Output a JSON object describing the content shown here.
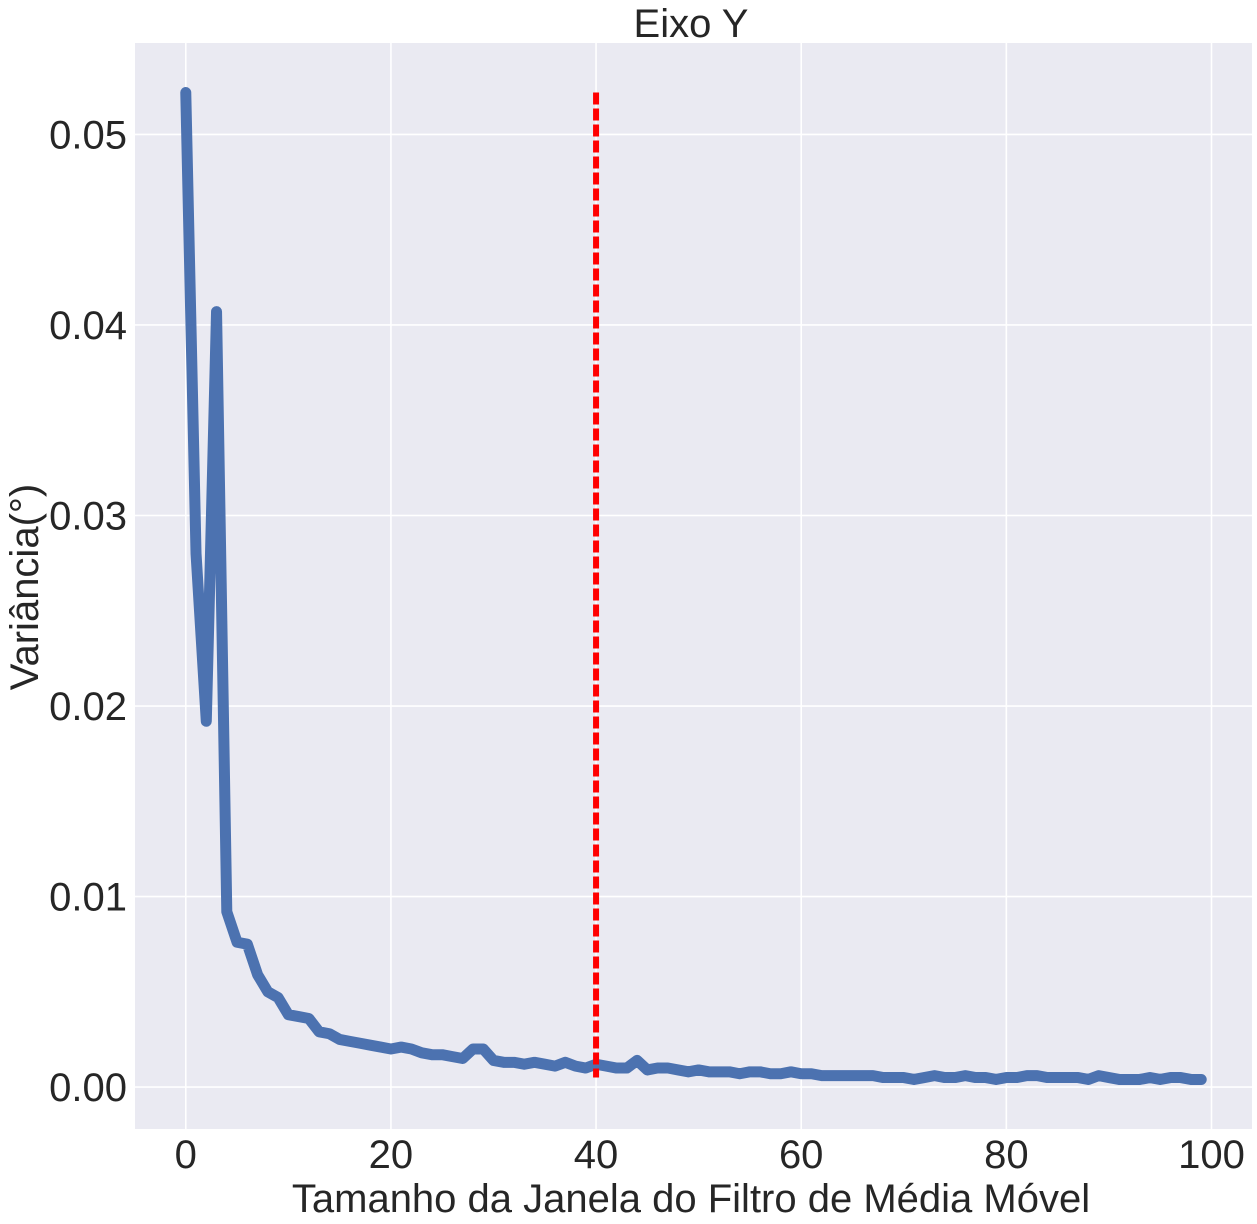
{
  "chart_data": {
    "type": "line",
    "title": "Eixo Y",
    "xlabel": "Tamanho da Janela do Filtro de Média Móvel",
    "ylabel": "Variância(°)",
    "xlim": [
      -4.95,
      103.95
    ],
    "ylim": [
      -0.0022,
      0.0548
    ],
    "xticks": [
      0,
      20,
      40,
      60,
      80,
      100
    ],
    "xtick_labels": [
      "0",
      "20",
      "40",
      "60",
      "80",
      "100"
    ],
    "yticks": [
      0.0,
      0.01,
      0.02,
      0.03,
      0.04,
      0.05
    ],
    "ytick_labels": [
      "0.00",
      "0.01",
      "0.02",
      "0.03",
      "0.04",
      "0.05"
    ],
    "grid": true,
    "style": {
      "background": "#eaeaf2",
      "grid_color": "#ffffff",
      "text_color": "#262626"
    },
    "series": [
      {
        "color": "#4c72b0",
        "x": [
          0,
          1,
          2,
          3,
          4,
          5,
          6,
          7,
          8,
          9,
          10,
          11,
          12,
          13,
          14,
          15,
          16,
          17,
          18,
          19,
          20,
          21,
          22,
          23,
          24,
          25,
          26,
          27,
          28,
          29,
          30,
          31,
          32,
          33,
          34,
          35,
          36,
          37,
          38,
          39,
          40,
          41,
          42,
          43,
          44,
          45,
          46,
          47,
          48,
          49,
          50,
          51,
          52,
          53,
          54,
          55,
          56,
          57,
          58,
          59,
          60,
          61,
          62,
          63,
          64,
          65,
          66,
          67,
          68,
          69,
          70,
          71,
          72,
          73,
          74,
          75,
          76,
          77,
          78,
          79,
          80,
          81,
          82,
          83,
          84,
          85,
          86,
          87,
          88,
          89,
          90,
          91,
          92,
          93,
          94,
          95,
          96,
          97,
          98,
          99
        ],
        "y": [
          0.0522,
          0.028,
          0.0192,
          0.0407,
          0.0092,
          0.0076,
          0.0075,
          0.0059,
          0.005,
          0.0047,
          0.0038,
          0.0037,
          0.0036,
          0.0029,
          0.0028,
          0.0025,
          0.0024,
          0.0023,
          0.0022,
          0.0021,
          0.002,
          0.0021,
          0.002,
          0.0018,
          0.0017,
          0.0017,
          0.0016,
          0.0015,
          0.002,
          0.002,
          0.0014,
          0.0013,
          0.0013,
          0.0012,
          0.0013,
          0.0012,
          0.0011,
          0.0013,
          0.0011,
          0.001,
          0.0012,
          0.0011,
          0.001,
          0.001,
          0.0014,
          0.0009,
          0.001,
          0.001,
          0.0009,
          0.0008,
          0.0009,
          0.0008,
          0.0008,
          0.0008,
          0.0007,
          0.0008,
          0.0008,
          0.0007,
          0.0007,
          0.0008,
          0.0007,
          0.0007,
          0.0006,
          0.0006,
          0.0006,
          0.0006,
          0.0006,
          0.0006,
          0.0005,
          0.0005,
          0.0005,
          0.0004,
          0.0005,
          0.0006,
          0.0005,
          0.0005,
          0.0006,
          0.0005,
          0.0005,
          0.0004,
          0.0005,
          0.0005,
          0.0006,
          0.0006,
          0.0005,
          0.0005,
          0.0005,
          0.0005,
          0.0004,
          0.0006,
          0.0005,
          0.0004,
          0.0004,
          0.0004,
          0.0005,
          0.0004,
          0.0005,
          0.0005,
          0.0004,
          0.0004
        ]
      }
    ],
    "annotations": [
      {
        "type": "vline",
        "x": 40,
        "y_range": [
          0.0005,
          0.0522
        ],
        "color": "#ff0000",
        "style": "dashed"
      }
    ]
  }
}
